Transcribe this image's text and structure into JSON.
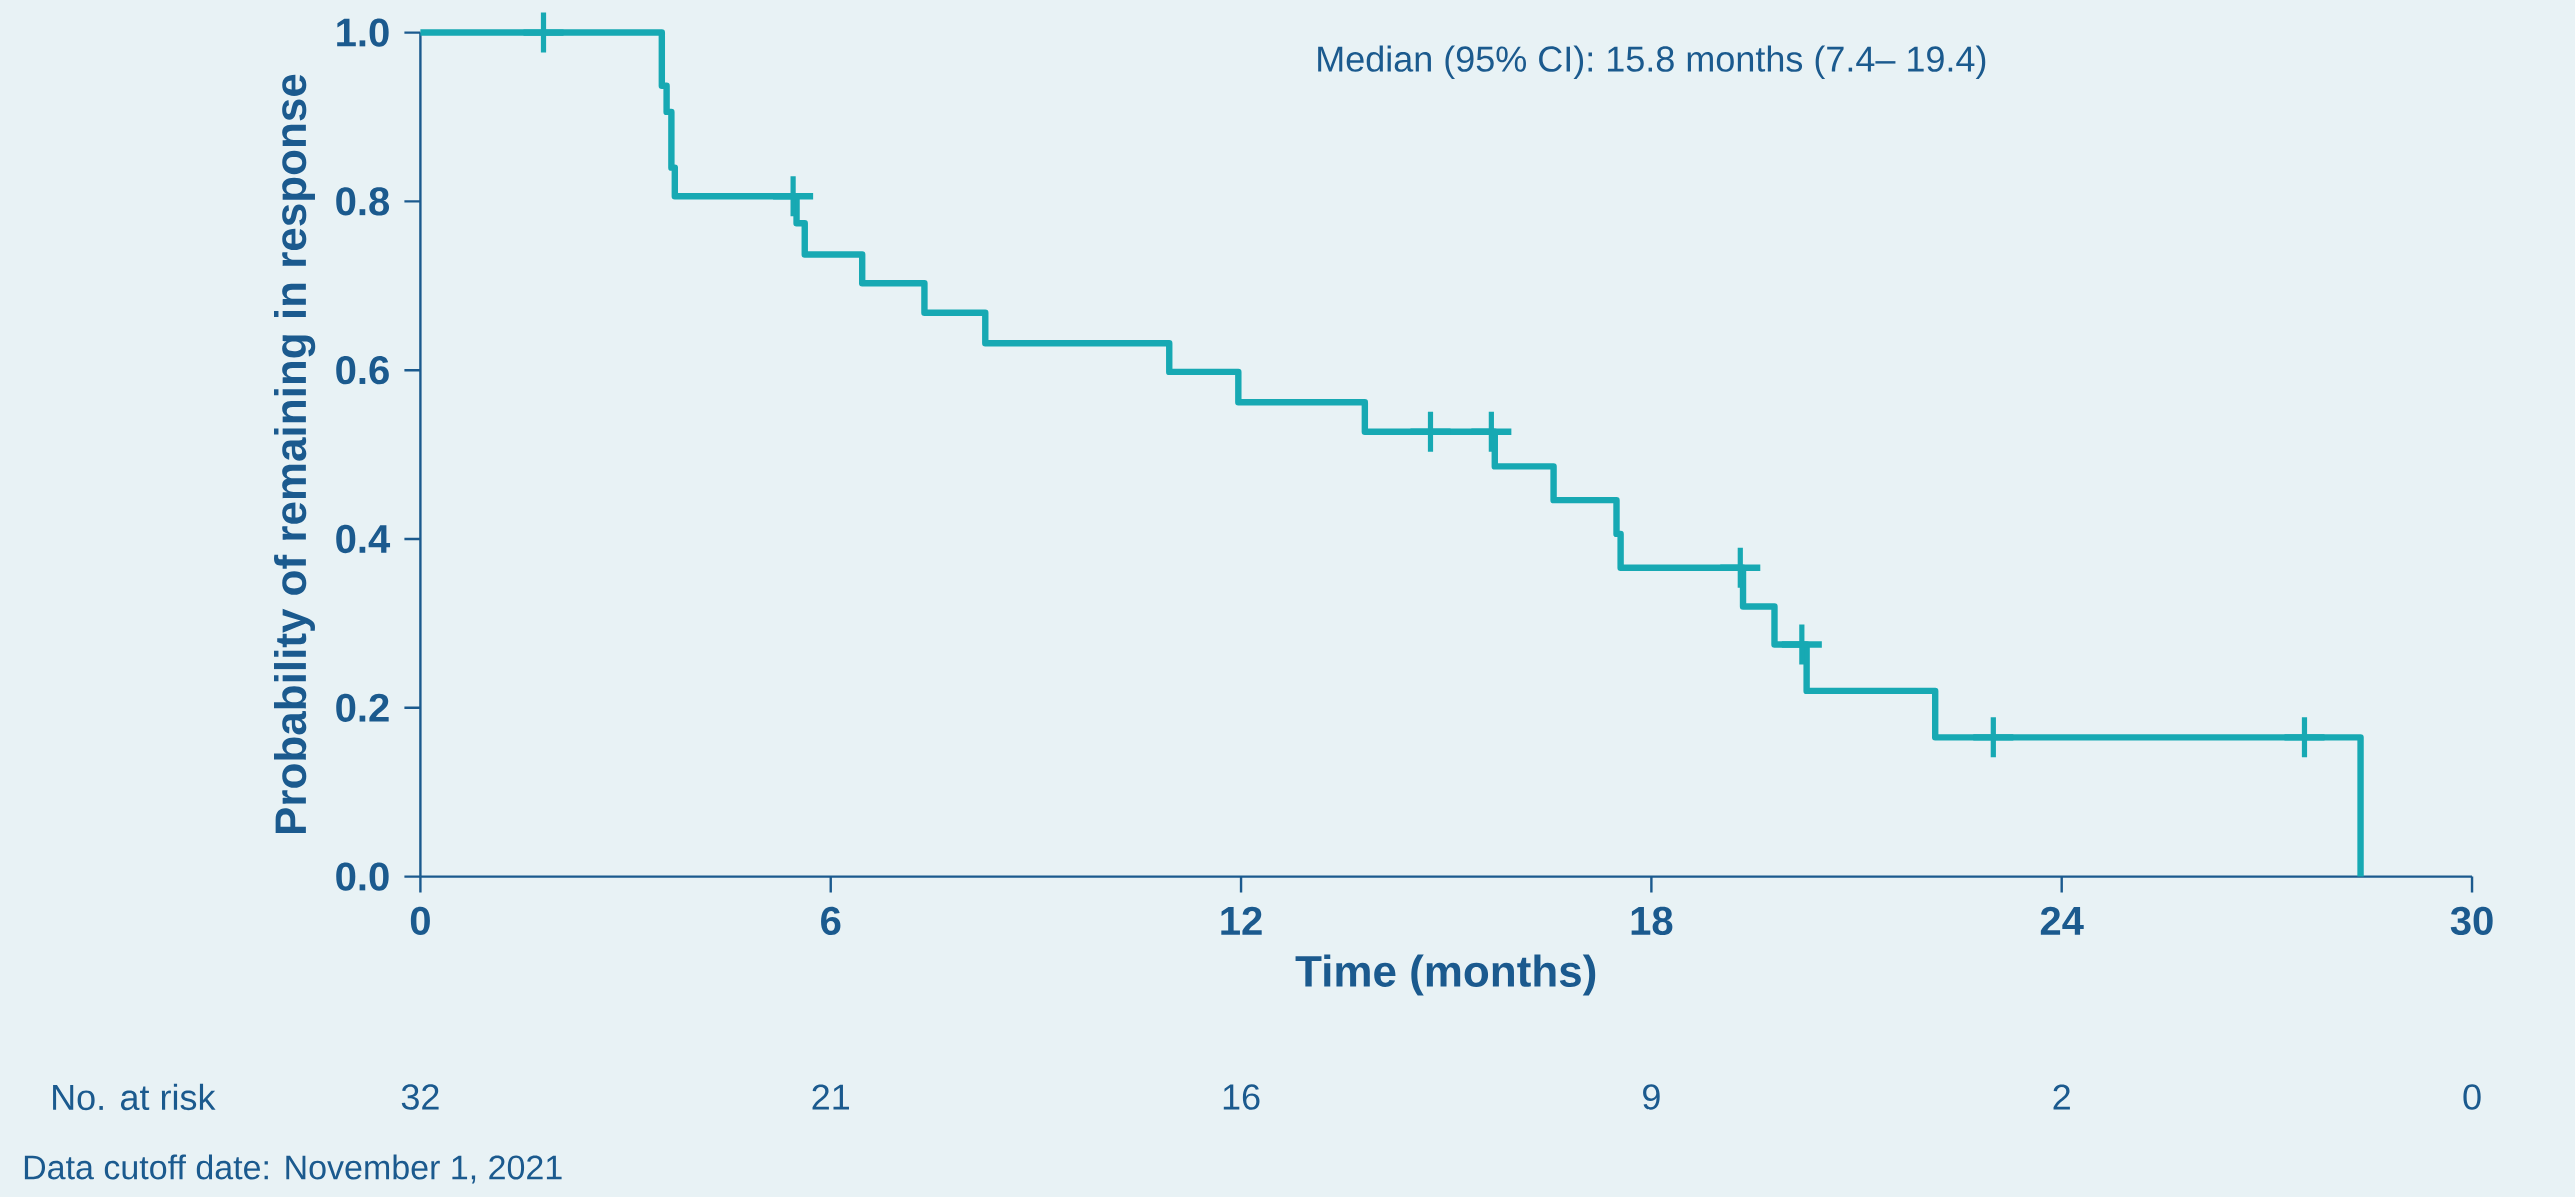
{
  "chart_data": {
    "type": "step",
    "xlabel": "Time (months)",
    "ylabel": "Probability of remaining in response",
    "xlim": [
      0,
      30
    ],
    "xticks": [
      0,
      6,
      12,
      18,
      24,
      30
    ],
    "ylim": [
      0,
      1
    ],
    "yticks": [
      {
        "value": 0,
        "label": "0.0"
      },
      {
        "value": 0.2,
        "label": "0.2"
      },
      {
        "value": 0.4,
        "label": "0.4"
      },
      {
        "value": 0.6,
        "label": "0.6"
      },
      {
        "value": 0.8,
        "label": "0.8"
      },
      {
        "value": 1,
        "label": "1.0"
      }
    ],
    "series": [
      {
        "type": "step",
        "color": "#17a9b3",
        "x": [
          0,
          3.53,
          3.6,
          3.67,
          3.72,
          5.5,
          5.62,
          6.46,
          7.37,
          8.26,
          10.95,
          11.96,
          13.81,
          15.71,
          16.57,
          17.49,
          17.55,
          19.34,
          19.8,
          20.27,
          22.15,
          28.37
        ],
        "values": [
          1.0,
          0.937,
          0.906,
          0.84,
          0.806,
          0.774,
          0.737,
          0.703,
          0.668,
          0.632,
          0.598,
          0.562,
          0.527,
          0.486,
          0.446,
          0.406,
          0.366,
          0.32,
          0.275,
          0.22,
          0.165,
          0
        ]
      },
      {
        "type": "scatter",
        "marker": "cross",
        "color": "#17a9b3",
        "x": [
          1.8,
          5.45,
          14.77,
          15.66,
          19.3,
          20.2,
          23.0,
          27.55
        ],
        "values": [
          1.0,
          0.806,
          0.527,
          0.527,
          0.366,
          0.275,
          0.165,
          0.165
        ]
      }
    ],
    "annotations": [
      "Median (95% CI): 15.8 months (7.4– 19.4)",
      "No. at risk",
      "32",
      "21",
      "16",
      "9",
      "2",
      "0",
      "Data cutoff date: November 1, 2021"
    ]
  }
}
